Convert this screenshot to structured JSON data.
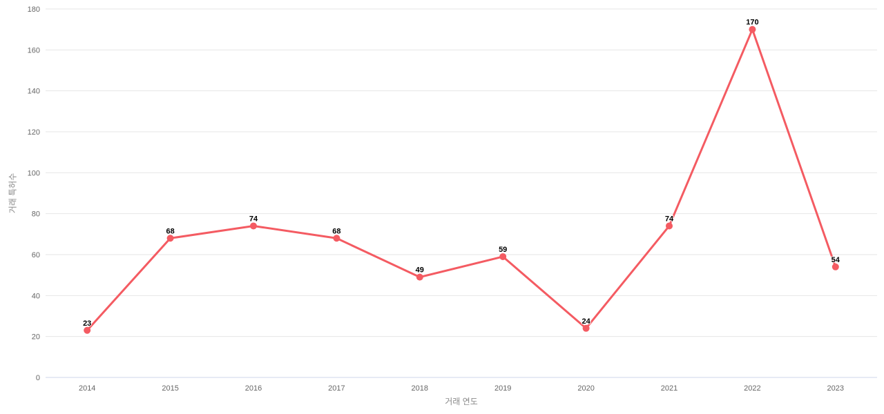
{
  "chart_data": {
    "type": "line",
    "categories": [
      "2014",
      "2015",
      "2016",
      "2017",
      "2018",
      "2019",
      "2020",
      "2021",
      "2022",
      "2023"
    ],
    "values": [
      23,
      68,
      74,
      68,
      49,
      59,
      24,
      74,
      170,
      54
    ],
    "title": "",
    "xlabel": "거래 연도",
    "ylabel": "거래 특허수",
    "ylim": [
      0,
      180
    ],
    "ytick_step": 20,
    "yticks": [
      0,
      20,
      40,
      60,
      80,
      100,
      120,
      140,
      160,
      180
    ],
    "grid": true,
    "legend": false,
    "data_labels_shown": true,
    "colors": {
      "series": "#f45b62",
      "grid_line": "#e6e6e6",
      "axis_line": "#ccd6eb",
      "tick_label": "#666666",
      "axis_title": "#8a8a8a",
      "data_label": "#000000",
      "background": "#ffffff"
    }
  }
}
